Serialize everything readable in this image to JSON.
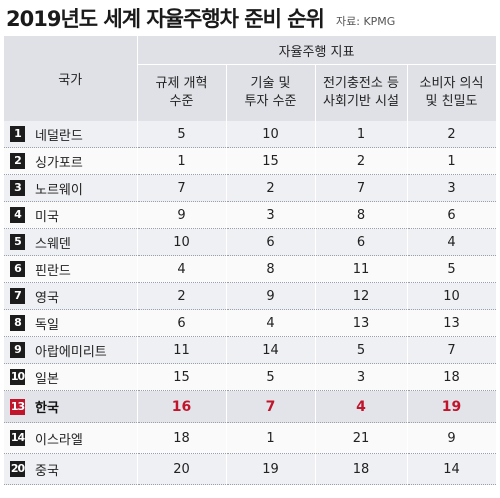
{
  "header": {
    "title": "2019년도 세계 자율주행차 준비 순위",
    "source": "자료: KPMG"
  },
  "table": {
    "country_header": "국가",
    "group_header": "자율주행 지표",
    "columns": [
      "규제 개혁\n수준",
      "기술 및\n투자 수준",
      "전기충전소 등\n사회기반 시설",
      "소비자 의식\n및 친밀도"
    ],
    "rows": [
      {
        "rank": "1",
        "country": "네덜란드",
        "values": [
          "5",
          "10",
          "1",
          "2"
        ]
      },
      {
        "rank": "2",
        "country": "싱가포르",
        "values": [
          "1",
          "15",
          "2",
          "1"
        ]
      },
      {
        "rank": "3",
        "country": "노르웨이",
        "values": [
          "7",
          "2",
          "7",
          "3"
        ]
      },
      {
        "rank": "4",
        "country": "미국",
        "values": [
          "9",
          "3",
          "8",
          "6"
        ]
      },
      {
        "rank": "5",
        "country": "스웨덴",
        "values": [
          "10",
          "6",
          "6",
          "4"
        ]
      },
      {
        "rank": "6",
        "country": "핀란드",
        "values": [
          "4",
          "8",
          "11",
          "5"
        ]
      },
      {
        "rank": "7",
        "country": "영국",
        "values": [
          "2",
          "9",
          "12",
          "10"
        ]
      },
      {
        "rank": "8",
        "country": "독일",
        "values": [
          "6",
          "4",
          "13",
          "13"
        ]
      },
      {
        "rank": "9",
        "country": "아랍에미리트",
        "values": [
          "11",
          "14",
          "5",
          "7"
        ]
      },
      {
        "rank": "10",
        "country": "일본",
        "values": [
          "15",
          "5",
          "3",
          "18"
        ]
      },
      {
        "rank": "13",
        "country": "한국",
        "values": [
          "16",
          "7",
          "4",
          "19"
        ]
      },
      {
        "rank": "14",
        "country": "이스라엘",
        "values": [
          "18",
          "1",
          "21",
          "9"
        ]
      },
      {
        "rank": "20",
        "country": "중국",
        "values": [
          "20",
          "19",
          "18",
          "14"
        ]
      }
    ]
  },
  "colors": {
    "header_bg": "#dfe1e7",
    "highlight": "#c0152b",
    "rank_badge": "#1c1c1c"
  }
}
